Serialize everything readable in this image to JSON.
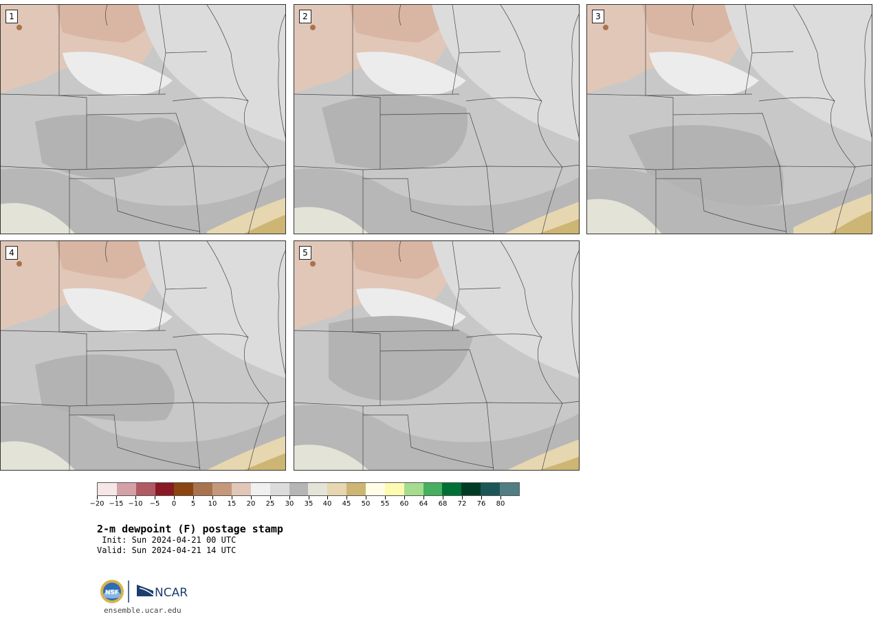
{
  "title": "2-m dewpoint (F) postage stamp",
  "init": " Init: Sun 2024-04-21 00 UTC",
  "valid": "Valid: Sun 2024-04-21 14 UTC",
  "site": "ensemble.ucar.edu",
  "logo_text": "NCAR",
  "nsf_text": "NSF",
  "members": [
    "1",
    "2",
    "3",
    "4",
    "5"
  ],
  "colorbar": {
    "labels": [
      "−20",
      "−15",
      "−10",
      "−5",
      "0",
      "5",
      "10",
      "15",
      "20",
      "25",
      "30",
      "35",
      "40",
      "45",
      "50",
      "55",
      "60",
      "64",
      "68",
      "72",
      "76",
      "80"
    ],
    "colors": [
      "#f6e6e8",
      "#d3a1a6",
      "#b05a63",
      "#891a24",
      "#8a4510",
      "#a8734d",
      "#c5987c",
      "#e1c7b8",
      "#f0f0f0",
      "#dcdcdc",
      "#b5b5b5",
      "#e3e3d7",
      "#e6d7b0",
      "#cdb574",
      "#fffde6",
      "#fcfbb0",
      "#a5dc8e",
      "#46b060",
      "#007036",
      "#003b25",
      "#1d5657",
      "#527d83"
    ]
  }
}
